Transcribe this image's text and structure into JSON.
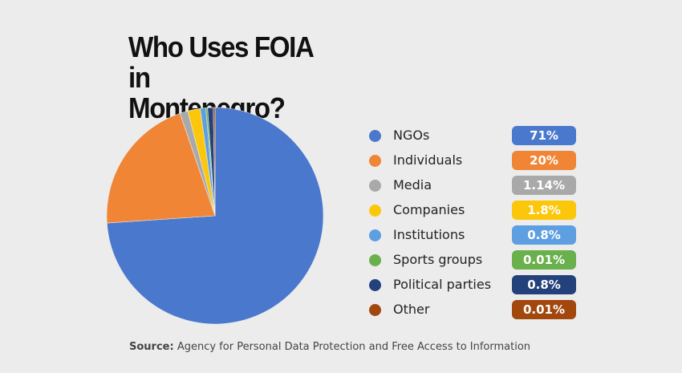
{
  "title_lines": [
    "Who Uses FOIA in",
    "Montenegro?"
  ],
  "source": {
    "prefix": "Source:",
    "text": "Agency for Personal Data Protection and Free Access to Information"
  },
  "chart_data": {
    "type": "pie",
    "slices": [
      {
        "label": "NGOs",
        "value": 71,
        "display": "71%",
        "color": "#4a78cd"
      },
      {
        "label": "Individuals",
        "value": 20,
        "display": "20%",
        "color": "#ef8535"
      },
      {
        "label": "Media",
        "value": 1.14,
        "display": "1.14%",
        "color": "#a9a9a9"
      },
      {
        "label": "Companies",
        "value": 1.8,
        "display": "1.8%",
        "color": "#fcc70a"
      },
      {
        "label": "Institutions",
        "value": 0.8,
        "display": "0.8%",
        "color": "#5d9fe0"
      },
      {
        "label": "Sports groups",
        "value": 0.01,
        "display": "0.01%",
        "color": "#6ab04c"
      },
      {
        "label": "Political parties",
        "value": 0.8,
        "display": "0.8%",
        "color": "#23427c"
      },
      {
        "label": "Other",
        "value": 0.01,
        "display": "0.01%",
        "color": "#a2480f"
      }
    ],
    "legend_position": "right"
  }
}
